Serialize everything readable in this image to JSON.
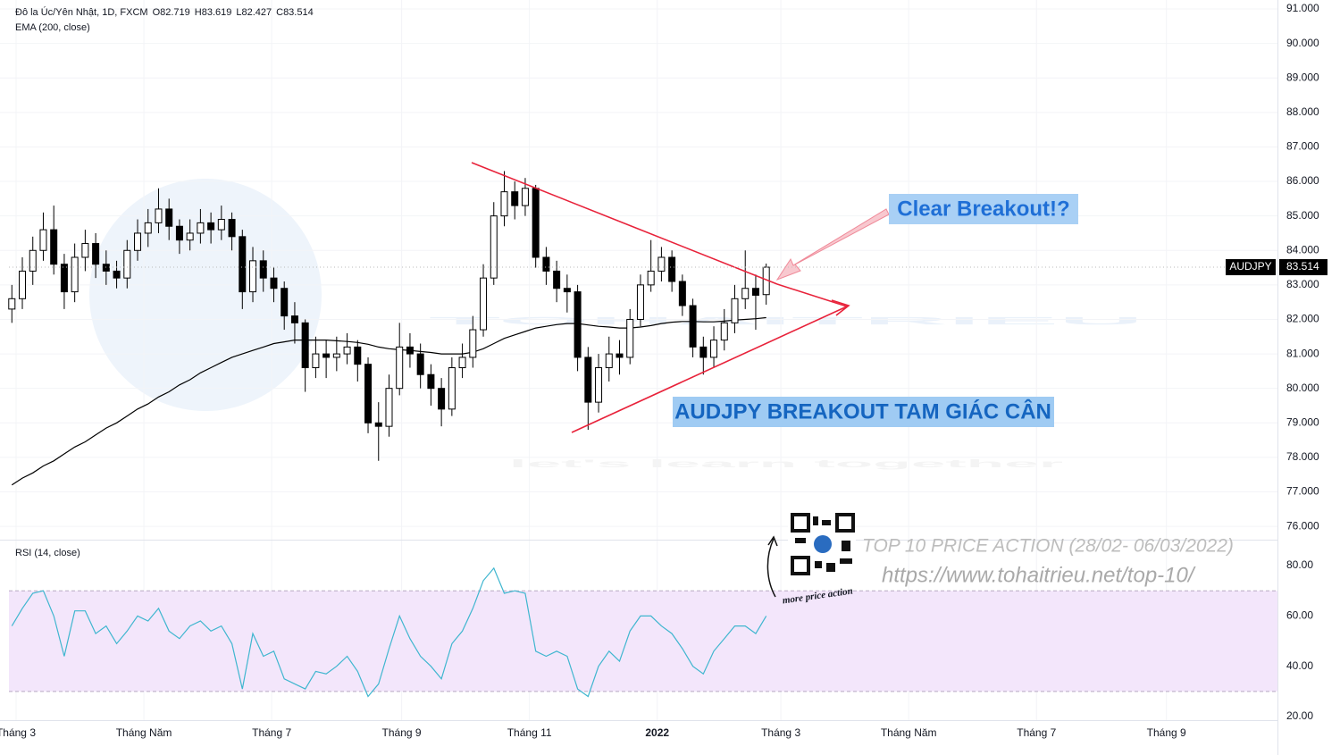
{
  "chart_data": {
    "type": "candlestick",
    "title": "Đô la Úc/Yên Nhật, 1D, FXCM",
    "last_bar_labels": [
      "O82.719",
      "H83.619",
      "L82.427",
      "C83.514"
    ],
    "symbol": "AUDJPY",
    "up_color": "#ffffff",
    "down_color": "#000000",
    "x": [
      -2,
      3,
      8,
      13,
      18,
      23,
      28,
      33,
      38,
      43,
      48,
      53,
      58,
      63,
      68,
      73,
      78,
      83,
      88,
      93,
      98,
      103,
      108,
      113,
      118,
      123,
      128,
      133,
      138,
      143,
      148,
      153,
      158,
      163,
      168,
      173,
      178,
      183,
      188,
      193,
      198,
      203,
      208,
      213,
      218,
      223,
      228,
      233,
      238,
      243,
      248,
      253,
      258,
      263,
      268,
      273,
      278,
      283,
      288,
      293,
      298,
      303,
      308,
      313,
      318,
      323,
      328,
      333,
      338,
      343,
      348,
      353,
      358
    ],
    "open": [
      82.3,
      82.6,
      83.4,
      84.0,
      84.6,
      83.6,
      82.8,
      83.8,
      84.2,
      83.6,
      83.4,
      83.2,
      84.0,
      84.5,
      84.8,
      85.2,
      84.7,
      84.3,
      84.5,
      84.8,
      84.6,
      84.9,
      84.4,
      82.8,
      83.7,
      83.2,
      82.9,
      82.1,
      81.9,
      80.6,
      81.0,
      80.9,
      81.0,
      81.2,
      80.7,
      79.0,
      78.9,
      80.0,
      81.2,
      81.0,
      80.4,
      80.0,
      79.4,
      80.6,
      80.9,
      81.7,
      83.2,
      85.0,
      85.7,
      85.3,
      85.8,
      83.8,
      83.4,
      82.9,
      82.8,
      80.9,
      79.6,
      80.6,
      81.0,
      80.9,
      82.0,
      83.0,
      83.4,
      83.8,
      83.1,
      82.4,
      81.2,
      80.9,
      81.4,
      81.9,
      82.6,
      82.9,
      82.719
    ],
    "high": [
      83.0,
      83.8,
      84.4,
      85.1,
      85.3,
      83.9,
      84.2,
      84.6,
      84.5,
      84.0,
      83.7,
      84.3,
      84.9,
      85.2,
      85.8,
      85.5,
      84.9,
      84.9,
      85.2,
      85.1,
      85.3,
      85.1,
      84.6,
      84.1,
      84.0,
      83.5,
      83.1,
      82.5,
      82.0,
      81.5,
      81.4,
      81.5,
      81.6,
      81.4,
      80.9,
      79.6,
      80.4,
      81.9,
      81.6,
      81.3,
      80.7,
      80.3,
      80.9,
      81.3,
      82.1,
      83.6,
      85.4,
      86.3,
      86.0,
      86.1,
      85.9,
      84.1,
      83.7,
      83.3,
      83.0,
      81.2,
      81.0,
      81.5,
      81.4,
      82.3,
      83.3,
      84.3,
      84.1,
      84.0,
      83.3,
      82.6,
      81.5,
      81.8,
      82.3,
      83.0,
      84.0,
      83.3,
      83.619
    ],
    "low": [
      81.9,
      82.3,
      83.0,
      83.7,
      83.3,
      82.3,
      82.5,
      83.4,
      83.2,
      83.0,
      82.9,
      82.9,
      83.7,
      84.1,
      84.5,
      84.3,
      83.9,
      84.0,
      84.2,
      84.2,
      84.3,
      84.0,
      82.3,
      82.5,
      82.8,
      82.5,
      81.7,
      81.3,
      79.9,
      80.3,
      80.3,
      80.5,
      80.7,
      80.2,
      78.7,
      77.9,
      78.6,
      79.8,
      80.6,
      80.0,
      79.5,
      78.9,
      79.2,
      80.3,
      80.6,
      81.5,
      83.0,
      84.7,
      84.9,
      85.0,
      83.5,
      83.0,
      82.5,
      82.2,
      80.5,
      78.8,
      79.3,
      80.2,
      80.4,
      80.7,
      81.8,
      82.8,
      83.1,
      82.8,
      82.1,
      80.9,
      80.4,
      80.6,
      81.1,
      81.6,
      82.3,
      81.7,
      82.427
    ],
    "close": [
      82.6,
      83.4,
      84.0,
      84.6,
      83.6,
      82.8,
      83.8,
      84.2,
      83.6,
      83.4,
      83.2,
      84.0,
      84.5,
      84.8,
      85.2,
      84.7,
      84.3,
      84.5,
      84.8,
      84.6,
      84.9,
      84.4,
      82.8,
      83.7,
      83.2,
      82.9,
      82.1,
      81.9,
      80.6,
      81.0,
      80.9,
      81.0,
      81.2,
      80.7,
      79.0,
      78.9,
      80.0,
      81.2,
      81.0,
      80.4,
      80.0,
      79.4,
      80.6,
      80.9,
      81.7,
      83.2,
      85.0,
      85.7,
      85.3,
      85.8,
      83.8,
      83.4,
      82.9,
      82.8,
      80.9,
      79.6,
      80.6,
      81.0,
      80.9,
      82.0,
      83.0,
      83.4,
      83.8,
      83.1,
      82.4,
      81.2,
      80.9,
      81.4,
      81.9,
      82.6,
      82.9,
      82.7,
      83.514
    ],
    "ema": {
      "name": "EMA (200, close)",
      "color": "#000000",
      "values": [
        77.2,
        77.4,
        77.55,
        77.75,
        77.9,
        78.1,
        78.3,
        78.45,
        78.65,
        78.85,
        79.0,
        79.2,
        79.4,
        79.55,
        79.75,
        79.9,
        80.1,
        80.25,
        80.45,
        80.6,
        80.75,
        80.9,
        81.0,
        81.1,
        81.2,
        81.3,
        81.35,
        81.4,
        81.4,
        81.4,
        81.4,
        81.38,
        81.36,
        81.33,
        81.28,
        81.2,
        81.15,
        81.12,
        81.1,
        81.07,
        81.04,
        81.0,
        81.0,
        81.0,
        81.05,
        81.15,
        81.3,
        81.45,
        81.55,
        81.65,
        81.75,
        81.8,
        81.85,
        81.88,
        81.88,
        81.84,
        81.8,
        81.78,
        81.75,
        81.75,
        81.78,
        81.82,
        81.88,
        81.92,
        81.94,
        81.94,
        81.93,
        81.93,
        81.95,
        81.98,
        82.0,
        82.02,
        82.05
      ]
    },
    "xlim": [
      -3.4,
      602
    ],
    "xticks": [
      {
        "value": 0,
        "label": "Tháng 3"
      },
      {
        "value": 61,
        "label": "Tháng Năm"
      },
      {
        "value": 122,
        "label": "Tháng 7"
      },
      {
        "value": 184,
        "label": "Tháng 9"
      },
      {
        "value": 245,
        "label": "Tháng 11"
      },
      {
        "value": 306,
        "label": "2022"
      },
      {
        "value": 365,
        "label": "Tháng 3"
      },
      {
        "value": 426,
        "label": "Tháng Năm"
      },
      {
        "value": 487,
        "label": "Tháng 7"
      },
      {
        "value": 549,
        "label": "Tháng 9"
      }
    ],
    "ylim": [
      75.64,
      91.26
    ],
    "yticks": [
      {
        "value": 76,
        "label": "76.000"
      },
      {
        "value": 77,
        "label": "77.000"
      },
      {
        "value": 78,
        "label": "78.000"
      },
      {
        "value": 79,
        "label": "79.000"
      },
      {
        "value": 80,
        "label": "80.000"
      },
      {
        "value": 81,
        "label": "81.000"
      },
      {
        "value": 82,
        "label": "82.000"
      },
      {
        "value": 83,
        "label": "83.000"
      },
      {
        "value": 84,
        "label": "84.000"
      },
      {
        "value": 85,
        "label": "85.000"
      },
      {
        "value": 86,
        "label": "86.000"
      },
      {
        "value": 87,
        "label": "87.000"
      },
      {
        "value": 88,
        "label": "88.000"
      },
      {
        "value": 89,
        "label": "89.000"
      },
      {
        "value": 90,
        "label": "90.000"
      },
      {
        "value": 91,
        "label": "91.000"
      }
    ],
    "grid": true,
    "rsi": {
      "name": "RSI (14, close)",
      "color": "#3fb6cf",
      "band": [
        30,
        70
      ],
      "band_color": "#f3e6fb",
      "values": [
        56,
        63,
        69,
        70,
        60,
        44,
        62,
        62,
        53,
        56,
        49,
        54,
        60,
        58,
        63,
        54,
        51,
        56,
        58,
        54,
        56,
        49,
        31,
        53,
        44,
        46,
        35,
        33,
        31,
        38,
        37,
        40,
        44,
        38,
        28,
        33,
        47,
        60,
        51,
        44,
        40,
        35,
        49,
        54,
        63,
        74,
        79,
        69,
        70,
        69,
        46,
        44,
        46,
        44,
        31,
        28,
        40,
        46,
        42,
        54,
        60,
        60,
        56,
        53,
        47,
        40,
        37,
        46,
        51,
        56,
        56,
        53,
        60
      ],
      "ylim": [
        18.6,
        89.6
      ],
      "yticks": [
        {
          "value": 20,
          "label": "20.00"
        },
        {
          "value": 40,
          "label": "40.00"
        },
        {
          "value": 60,
          "label": "60.00"
        },
        {
          "value": 80,
          "label": "80.00"
        }
      ]
    },
    "annotations": {
      "breakout": "Clear Breakout!?",
      "pattern": "AUDJPY BREAKOUT TAM GIÁC CÂN",
      "promo": "TOP 10 PRICE ACTION (28/02- 06/03/2022)",
      "url": "https://www.tohaitrieu.net/top-10/",
      "more": "more price action"
    },
    "watermark": [
      "TOHAITRIEU",
      "let's learn together"
    ]
  }
}
